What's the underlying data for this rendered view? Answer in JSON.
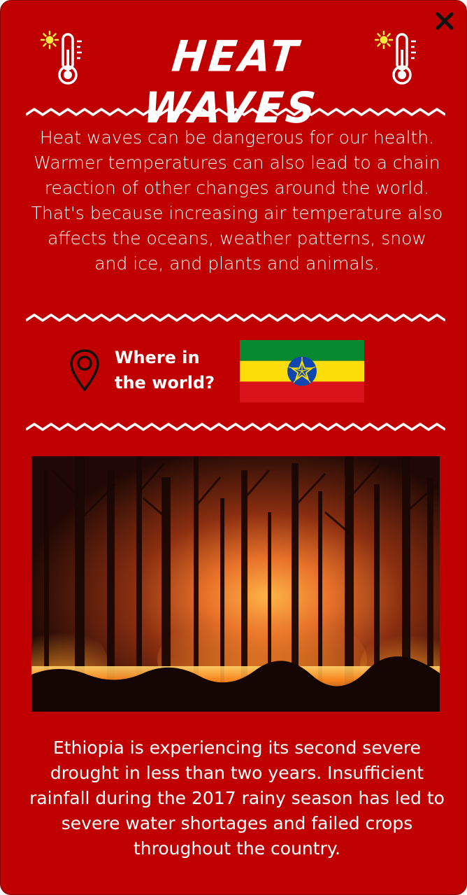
{
  "header": {
    "title": "HEAT WAVES",
    "close_icon": "close-icon"
  },
  "intro": {
    "text": "Heat waves can be dangerous for our health. Warmer temperatures can also lead to a chain reaction of other changes around the world. That's because increasing air temperature also affects the oceans, weather patterns, snow and ice, and plants and animals."
  },
  "location": {
    "icon": "map-pin-icon",
    "label": "Where in the world?",
    "flag": {
      "country": "Ethiopia",
      "stripe_colors": [
        "#078930",
        "#fcdd09",
        "#da121a"
      ],
      "emblem_color": "#0f47af",
      "star_color": "#fcdd09"
    }
  },
  "photo": {
    "subject": "forest fire at night"
  },
  "outro": {
    "text": "Ethiopia is experiencing its second severe drought in less than two years. Insufficient rainfall during the 2017 rainy season has led to severe water shortages and failed crops throughout the country."
  },
  "theme": {
    "card_background": "#c00000",
    "text_color": "#ffffff"
  }
}
